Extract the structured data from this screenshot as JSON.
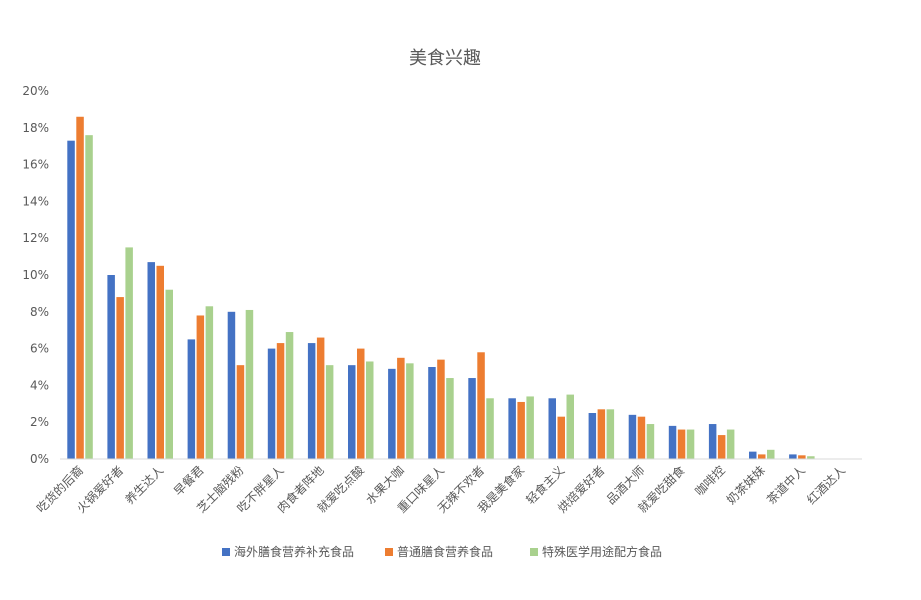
{
  "chart_data": {
    "type": "bar",
    "title": "美食兴趣",
    "xlabel": "",
    "ylabel": "",
    "ylim": [
      0,
      20
    ],
    "y_ticks": [
      0,
      2,
      4,
      6,
      8,
      10,
      12,
      14,
      16,
      18,
      20
    ],
    "y_tick_labels": [
      "0%",
      "2%",
      "4%",
      "6%",
      "8%",
      "10%",
      "12%",
      "14%",
      "16%",
      "18%",
      "20%"
    ],
    "value_unit": "%",
    "grid": false,
    "legend_position": "bottom",
    "categories": [
      "吃货的后裔",
      "火锅爱好者",
      "养生达人",
      "早餐君",
      "芝士脑残粉",
      "吃不胖星人",
      "肉食者阵地",
      "就爱吃点酸",
      "水果大咖",
      "重口味星人",
      "无辣不欢者",
      "我是美食家",
      "轻食主义",
      "烘焙爱好者",
      "品酒大师",
      "就爱吃甜食",
      "咖啡控",
      "奶茶妹妹",
      "茶道中人",
      "红酒达人"
    ],
    "series": [
      {
        "name": "海外膳食营养补充食品",
        "color": "#4472C4",
        "values": [
          17.3,
          10.0,
          10.7,
          6.5,
          8.0,
          6.0,
          6.3,
          5.1,
          4.9,
          5.0,
          4.4,
          3.3,
          3.3,
          2.5,
          2.4,
          1.8,
          1.9,
          0.4,
          0.25,
          0.0
        ]
      },
      {
        "name": "普通膳食营养食品",
        "color": "#ED7D31",
        "values": [
          18.6,
          8.8,
          10.5,
          7.8,
          5.1,
          6.3,
          6.6,
          6.0,
          5.5,
          5.4,
          5.8,
          3.1,
          2.3,
          2.7,
          2.3,
          1.6,
          1.3,
          0.25,
          0.2,
          0.0
        ]
      },
      {
        "name": "特殊医学用途配方食品",
        "color": "#A9D18E",
        "values": [
          17.6,
          11.5,
          9.2,
          8.3,
          8.1,
          6.9,
          5.1,
          5.3,
          5.2,
          4.4,
          3.3,
          3.4,
          3.5,
          2.7,
          1.9,
          1.6,
          1.6,
          0.5,
          0.15,
          0.0
        ]
      }
    ]
  }
}
